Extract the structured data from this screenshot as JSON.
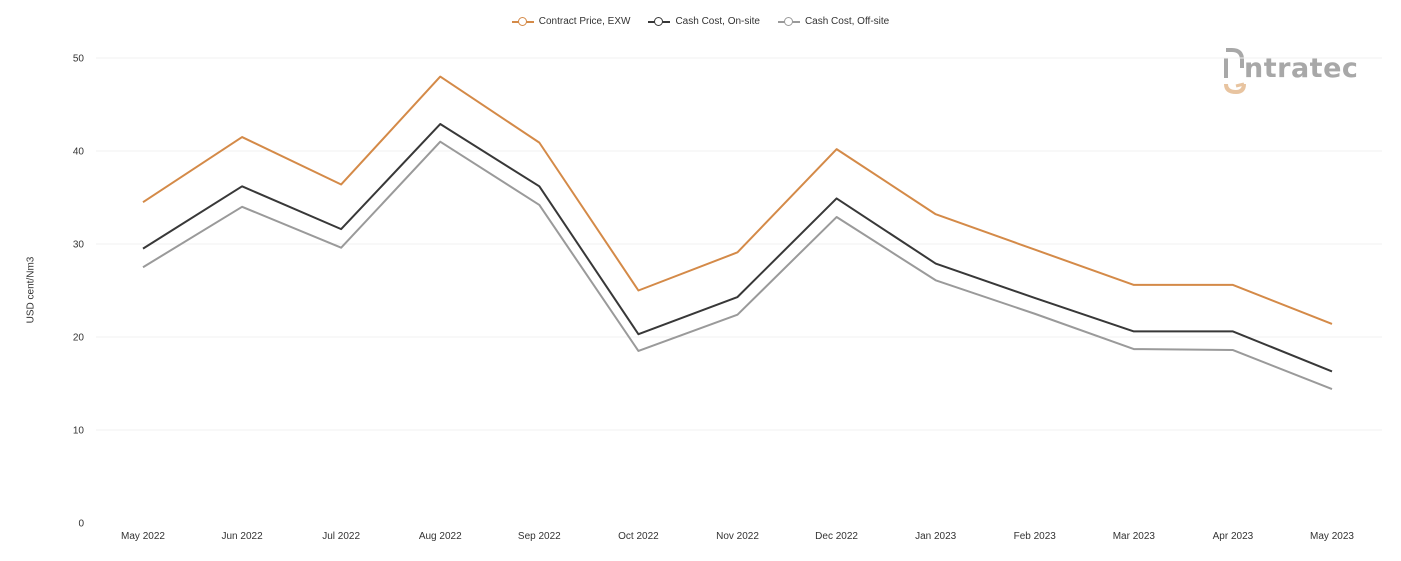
{
  "colors": {
    "contract": "#d48a48",
    "onsite": "#383838",
    "offsite": "#9a9a9a",
    "grid": "#f0f0f0",
    "logo_accent": "#e8c4a0",
    "logo_gray": "#a8a8a8"
  },
  "logo": {
    "text": "ntratec"
  },
  "chart_data": {
    "type": "line",
    "ylabel": "USD cent/Nm3",
    "xlabel": "",
    "ylim": [
      0,
      50
    ],
    "yticks": [
      0,
      10,
      20,
      30,
      40,
      50
    ],
    "grid": true,
    "legend_position": "top-center",
    "categories": [
      "May 2022",
      "Jun 2022",
      "Jul 2022",
      "Aug 2022",
      "Sep 2022",
      "Oct 2022",
      "Nov 2022",
      "Dec 2022",
      "Jan 2023",
      "Feb 2023",
      "Mar 2023",
      "Apr 2023",
      "May 2023"
    ],
    "series": [
      {
        "name": "Contract Price, EXW",
        "color": "#d48a48",
        "values": [
          34.5,
          41.5,
          36.4,
          48.0,
          40.9,
          25.0,
          29.1,
          40.2,
          33.2,
          29.4,
          25.6,
          25.6,
          21.4
        ]
      },
      {
        "name": "Cash Cost, On-site",
        "color": "#383838",
        "values": [
          29.5,
          36.2,
          31.6,
          42.9,
          36.2,
          20.3,
          24.3,
          34.9,
          27.9,
          24.2,
          20.6,
          20.6,
          16.3
        ]
      },
      {
        "name": "Cash Cost, Off-site",
        "color": "#9a9a9a",
        "values": [
          27.5,
          34.0,
          29.6,
          41.0,
          34.2,
          18.5,
          22.4,
          32.9,
          26.1,
          22.5,
          18.7,
          18.6,
          14.4
        ]
      }
    ]
  }
}
